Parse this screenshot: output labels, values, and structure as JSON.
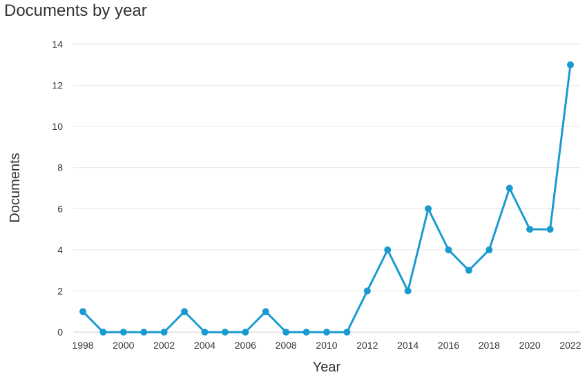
{
  "chart_data": {
    "type": "line",
    "title": "Documents by year",
    "xlabel": "Year",
    "ylabel": "Documents",
    "ylim": [
      0,
      14
    ],
    "yticks": [
      0,
      2,
      4,
      6,
      8,
      10,
      12,
      14
    ],
    "xticks": [
      1998,
      2000,
      2002,
      2004,
      2006,
      2008,
      2010,
      2012,
      2014,
      2016,
      2018,
      2020,
      2022
    ],
    "grid": true,
    "line_color": "#1a9bd0",
    "series": [
      {
        "x": [
          1998,
          1999,
          2000,
          2001,
          2002,
          2003,
          2004,
          2005,
          2006,
          2007,
          2008,
          2009,
          2010,
          2011,
          2012,
          2013,
          2014,
          2015,
          2016,
          2017,
          2018,
          2019,
          2020,
          2021,
          2022
        ],
        "values": [
          1,
          0,
          0,
          0,
          0,
          1,
          0,
          0,
          0,
          1,
          0,
          0,
          0,
          0,
          2,
          4,
          2,
          6,
          4,
          3,
          4,
          7,
          5,
          5,
          13
        ]
      }
    ]
  }
}
